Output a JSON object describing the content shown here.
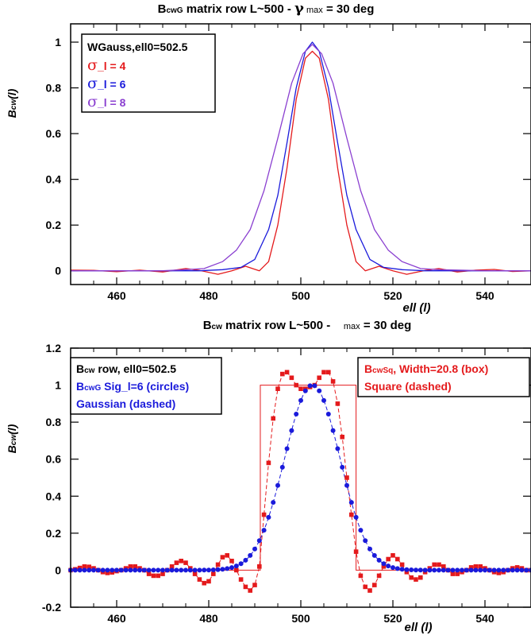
{
  "chart_data": [
    {
      "type": "line",
      "title_main": "B",
      "title_sub": "cwG",
      "title_rest": " matrix row L~500 - ",
      "title_gamma": "γ",
      "title_max": " max",
      "title_end": " = 30 deg",
      "ylabel_main": "B",
      "ylabel_sub": "cw",
      "ylabel_rest": "(l)",
      "xlabel": "ell  (l)",
      "xlim": [
        450,
        550
      ],
      "ylim": [
        -0.06,
        1.08
      ],
      "xticks": [
        460,
        480,
        500,
        520,
        540
      ],
      "yticks": [
        0,
        0.2,
        0.4,
        0.6,
        0.8,
        1
      ],
      "ytick_labels": [
        "0",
        "0.2",
        "0.4",
        "0.6",
        "0.8",
        "1"
      ],
      "legend": {
        "header": "WGauss,ell0=502.5",
        "entries": [
          {
            "sym": "σ",
            "text": "_l = 4",
            "color": "#e41a1c"
          },
          {
            "sym": "σ",
            "text": "_l = 6",
            "color": "#1a1adb"
          },
          {
            "sym": "σ",
            "text": "_l = 8",
            "color": "#8a3fd0"
          }
        ]
      },
      "series": [
        {
          "sigma": 4,
          "color": "#e41a1c",
          "peak": 0.96,
          "points": [
            [
              450,
              0.003
            ],
            [
              455,
              0.002
            ],
            [
              460,
              -0.004
            ],
            [
              465,
              0.003
            ],
            [
              470,
              -0.005
            ],
            [
              475,
              0.01
            ],
            [
              478,
              0.002
            ],
            [
              482,
              -0.015
            ],
            [
              485,
              0.0
            ],
            [
              488,
              0.02
            ],
            [
              491,
              0.0
            ],
            [
              493,
              0.04
            ],
            [
              495,
              0.2
            ],
            [
              497,
              0.45
            ],
            [
              499,
              0.75
            ],
            [
              501,
              0.93
            ],
            [
              502.5,
              0.96
            ],
            [
              504,
              0.93
            ],
            [
              506,
              0.75
            ],
            [
              508,
              0.45
            ],
            [
              510,
              0.2
            ],
            [
              512,
              0.04
            ],
            [
              514,
              0.0
            ],
            [
              517,
              0.02
            ],
            [
              520,
              0.0
            ],
            [
              523,
              -0.015
            ],
            [
              527,
              0.002
            ],
            [
              530,
              0.01
            ],
            [
              534,
              -0.005
            ],
            [
              538,
              0.003
            ],
            [
              542,
              0.006
            ],
            [
              546,
              -0.003
            ],
            [
              550,
              0.0
            ]
          ]
        },
        {
          "sigma": 6,
          "color": "#1a1adb",
          "peak": 1.0,
          "points": [
            [
              450,
              0.0
            ],
            [
              460,
              0.0
            ],
            [
              470,
              0.0
            ],
            [
              478,
              0.0
            ],
            [
              483,
              0.005
            ],
            [
              487,
              0.015
            ],
            [
              490,
              0.05
            ],
            [
              493,
              0.18
            ],
            [
              495,
              0.33
            ],
            [
              497,
              0.56
            ],
            [
              499,
              0.8
            ],
            [
              501,
              0.96
            ],
            [
              502.5,
              1.0
            ],
            [
              504,
              0.96
            ],
            [
              506,
              0.8
            ],
            [
              508,
              0.56
            ],
            [
              510,
              0.33
            ],
            [
              512,
              0.18
            ],
            [
              515,
              0.05
            ],
            [
              518,
              0.015
            ],
            [
              522,
              0.005
            ],
            [
              527,
              0.0
            ],
            [
              540,
              0.0
            ],
            [
              550,
              0.0
            ]
          ]
        },
        {
          "sigma": 8,
          "color": "#8a3fd0",
          "peak": 0.99,
          "points": [
            [
              450,
              0.0
            ],
            [
              460,
              0.0
            ],
            [
              470,
              0.0
            ],
            [
              475,
              0.005
            ],
            [
              479,
              0.01
            ],
            [
              483,
              0.04
            ],
            [
              486,
              0.09
            ],
            [
              489,
              0.18
            ],
            [
              492,
              0.35
            ],
            [
              495,
              0.58
            ],
            [
              498,
              0.82
            ],
            [
              500.5,
              0.95
            ],
            [
              502.5,
              0.99
            ],
            [
              504.5,
              0.95
            ],
            [
              507,
              0.82
            ],
            [
              510,
              0.58
            ],
            [
              513,
              0.35
            ],
            [
              516,
              0.18
            ],
            [
              519,
              0.09
            ],
            [
              522,
              0.04
            ],
            [
              526,
              0.01
            ],
            [
              530,
              0.005
            ],
            [
              540,
              0.0
            ],
            [
              550,
              0.0
            ]
          ]
        }
      ]
    },
    {
      "type": "line",
      "title_main": "B",
      "title_sub": "cw",
      "title_rest": " matrix row L~500 -    ",
      "title_max": "max",
      "title_end": " = 30 deg",
      "ylabel_main": "B",
      "ylabel_sub": "cw",
      "ylabel_rest": "(l)",
      "xlabel": "ell  (l)",
      "xlim": [
        450,
        550
      ],
      "ylim": [
        -0.2,
        1.2
      ],
      "xticks": [
        460,
        480,
        500,
        520,
        540
      ],
      "yticks": [
        -0.2,
        0,
        0.2,
        0.4,
        0.6,
        0.8,
        1,
        1.2
      ],
      "ytick_labels": [
        "-0.2",
        "0",
        "0.2",
        "0.4",
        "0.6",
        "0.8",
        "1",
        "1.2"
      ],
      "legend_left": {
        "lines": [
          {
            "main": "B",
            "sub": "cw",
            "rest": " row, ell0=502.5",
            "color": "#000000"
          },
          {
            "main": "B",
            "sub": "cwG",
            "rest": " Sig_l=6 (circles)",
            "color": "#1a1adb"
          },
          {
            "main": "",
            "sub": "",
            "rest": "Gaussian (dashed)",
            "color": "#1a1adb"
          }
        ]
      },
      "legend_right": {
        "lines": [
          {
            "main": "B",
            "sub": "cwSq",
            "rest": ", Width=20.8 (box)",
            "color": "#e41a1c"
          },
          {
            "main": "",
            "sub": "",
            "rest": "Square (dashed)",
            "color": "#e41a1c"
          }
        ]
      },
      "box": {
        "x0": 491.2,
        "x1": 512.0,
        "height": 1.0,
        "color": "#e41a1c"
      },
      "gaussian": {
        "center": 502.5,
        "sigma": 6,
        "color": "#1a1adb"
      },
      "square_points": {
        "color": "#e41a1c",
        "x": [
          450,
          451,
          452,
          453,
          454,
          455,
          456,
          457,
          458,
          459,
          460,
          461,
          462,
          463,
          464,
          465,
          466,
          467,
          468,
          469,
          470,
          471,
          472,
          473,
          474,
          475,
          476,
          477,
          478,
          479,
          480,
          481,
          482,
          483,
          484,
          485,
          486,
          487,
          488,
          489,
          490,
          491,
          492,
          493,
          494,
          495,
          496,
          497,
          498,
          499,
          500,
          501,
          502,
          503,
          504,
          505,
          506,
          507,
          508,
          509,
          510,
          511,
          512,
          513,
          514,
          515,
          516,
          517,
          518,
          519,
          520,
          521,
          522,
          523,
          524,
          525,
          526,
          527,
          528,
          529,
          530,
          531,
          532,
          533,
          534,
          535,
          536,
          537,
          538,
          539,
          540,
          541,
          542,
          543,
          544,
          545,
          546,
          547,
          548,
          549,
          550
        ],
        "y": [
          0.0,
          0.005,
          0.012,
          0.02,
          0.018,
          0.01,
          0.0,
          -0.01,
          -0.015,
          -0.012,
          -0.005,
          0.0,
          0.01,
          0.02,
          0.02,
          0.01,
          0.0,
          -0.02,
          -0.03,
          -0.03,
          -0.02,
          0.0,
          0.02,
          0.04,
          0.05,
          0.04,
          0.01,
          -0.02,
          -0.05,
          -0.07,
          -0.06,
          -0.02,
          0.03,
          0.07,
          0.08,
          0.05,
          0.0,
          -0.05,
          -0.09,
          -0.11,
          -0.08,
          0.02,
          0.3,
          0.58,
          0.82,
          0.98,
          1.06,
          1.07,
          1.04,
          1.0,
          0.98,
          0.98,
          0.99,
          1.0,
          1.04,
          1.07,
          1.07,
          1.02,
          0.9,
          0.72,
          0.5,
          0.3,
          0.1,
          -0.03,
          -0.09,
          -0.11,
          -0.08,
          -0.03,
          0.02,
          0.06,
          0.08,
          0.06,
          0.03,
          -0.01,
          -0.04,
          -0.05,
          -0.04,
          -0.01,
          0.01,
          0.03,
          0.03,
          0.02,
          0.0,
          -0.02,
          -0.02,
          -0.01,
          0.0,
          0.015,
          0.02,
          0.02,
          0.01,
          0.0,
          -0.01,
          -0.015,
          -0.01,
          0.0,
          0.01,
          0.015,
          0.01,
          0.0,
          0.0
        ]
      }
    }
  ]
}
